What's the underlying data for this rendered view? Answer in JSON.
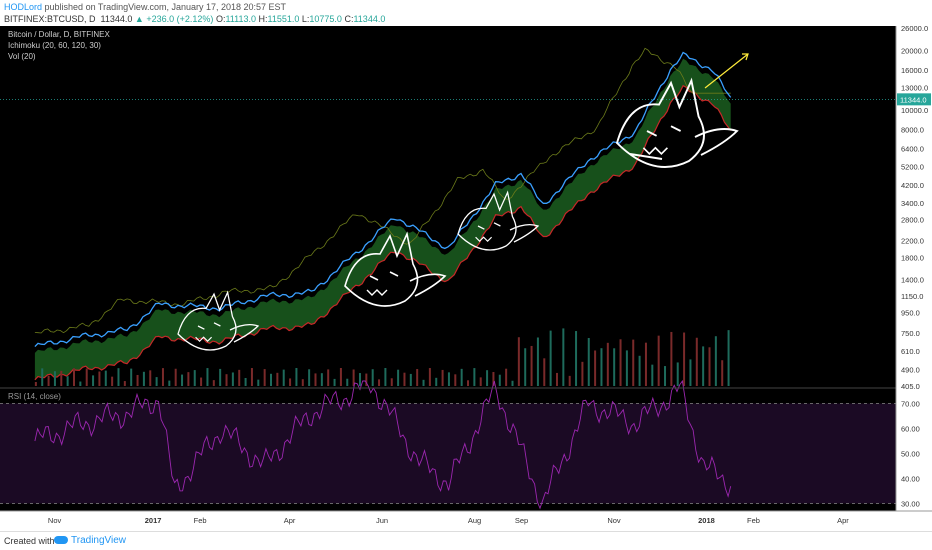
{
  "header": {
    "author": "HODLord",
    "published": "published on TradingView.com, January 17, 2018 20:57 EST",
    "symbol_line": "BITFINEX:BTCUSD, D",
    "price": "11344.0",
    "change": "+236.0 (+2.12%)",
    "o_label": "O:",
    "o_value": "11113.0",
    "h_label": "H:",
    "h_value": "11551.0",
    "l_label": "L:",
    "l_value": "10775.0",
    "c_label": "C:",
    "c_value": "11344.0"
  },
  "legend": {
    "title": "Bitcoin / Dollar, D, BITFINEX",
    "ichimoku": "Ichimoku (20, 60, 120, 30)",
    "vol": "Vol (20)",
    "rsi": "RSI (14, close)"
  },
  "footer": {
    "created": "Created with",
    "brand": "TradingView"
  },
  "colors": {
    "background": "#000000",
    "price": "#3aa0ff",
    "cloud": "#1b5e20",
    "cloud_edge_red": "#c62828",
    "rsi": "#9c27b0",
    "rsi_band": "#1b0a24",
    "drawing": "#ffffff",
    "arrow": "#ffeb3b"
  },
  "chart_data": [
    {
      "type": "line",
      "title": "Bitcoin / Dollar, D, BITFINEX",
      "y_scale": "log",
      "y_ticks": [
        26000,
        20000,
        16000,
        13000,
        10000,
        8000,
        6400,
        5200,
        4200,
        3400,
        2800,
        2200,
        1800,
        1400,
        1150,
        950,
        750,
        610,
        490,
        405
      ],
      "x_ticks": [
        "Nov",
        "2017",
        "Feb",
        "Apr",
        "Jun",
        "Aug",
        "Sep",
        "Nov",
        "2018",
        "Feb",
        "Apr"
      ],
      "last_price_label": "11344.0",
      "series": [
        {
          "x": [
            "2016-10-15",
            "2016-11-15",
            "2016-12-15",
            "2017-01-05",
            "2017-02-15",
            "2017-03-15",
            "2017-04-15",
            "2017-05-15",
            "2017-06-10",
            "2017-07-15",
            "2017-08-15",
            "2017-09-01",
            "2017-09-15",
            "2017-10-15",
            "2017-11-15",
            "2017-12-08",
            "2017-12-17",
            "2018-01-05",
            "2018-01-17"
          ],
          "values": [
            640,
            720,
            780,
            1050,
            1000,
            1150,
            1200,
            1900,
            2900,
            2000,
            4200,
            4800,
            3300,
            5600,
            7800,
            16000,
            19000,
            16000,
            11344
          ]
        }
      ]
    },
    {
      "type": "line",
      "title": "RSI (14, close)",
      "y_ticks": [
        70,
        60,
        50,
        40,
        30
      ],
      "bands": [
        30,
        70
      ],
      "series": [
        {
          "x": [
            "2016-10-15",
            "2016-11-15",
            "2016-12-15",
            "2017-01-05",
            "2017-01-15",
            "2017-02-15",
            "2017-03-15",
            "2017-04-15",
            "2017-05-25",
            "2017-06-25",
            "2017-07-15",
            "2017-08-15",
            "2017-09-15",
            "2017-10-15",
            "2017-11-15",
            "2017-12-15",
            "2017-12-30",
            "2018-01-17"
          ],
          "values": [
            55,
            62,
            66,
            72,
            35,
            60,
            45,
            66,
            78,
            47,
            38,
            76,
            30,
            70,
            62,
            76,
            45,
            38
          ]
        }
      ]
    }
  ]
}
